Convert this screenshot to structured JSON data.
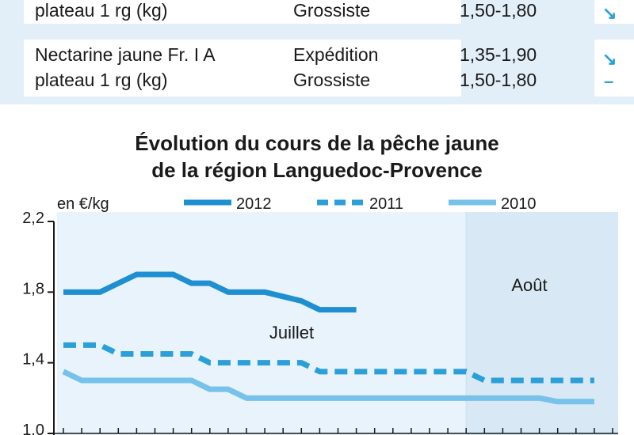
{
  "table": {
    "rows": [
      {
        "product_line2": "plateau 1 rg (kg)",
        "stage2": "Grossiste",
        "price2": "1,50-1,80",
        "trend2": "↘"
      },
      {
        "product_line1": "Nectarine jaune Fr. I A",
        "product_line2": "plateau 1 rg (kg)",
        "stage1": "Expédition",
        "stage2": "Grossiste",
        "price1": "1,35-1,90",
        "price2": "1,50-1,80",
        "trend1": "↘",
        "trend2": "–"
      }
    ]
  },
  "chart_data": {
    "type": "line",
    "title": "Évolution du cours de la pêche jaune",
    "subtitle": "de la région Languedoc-Provence",
    "ylabel": "en €/kg",
    "xlabel": "",
    "ylim": [
      1.0,
      2.2
    ],
    "yticks": [
      "2,2",
      "1,8",
      "1,4",
      "1,0"
    ],
    "yticks_values": [
      2.2,
      1.8,
      1.4,
      1.0
    ],
    "periods": [
      {
        "label": "Juillet",
        "start": 0,
        "end": 22
      },
      {
        "label": "Août",
        "start": 22,
        "end": 30
      }
    ],
    "legend_position": "top",
    "grid": false,
    "series": [
      {
        "name": "2012",
        "style": "solid",
        "color": "#1e8fd0",
        "x": [
          0,
          2,
          4,
          5,
          6,
          7,
          8,
          9,
          10,
          11,
          13,
          14,
          15,
          16
        ],
        "y": [
          1.8,
          1.8,
          1.9,
          1.9,
          1.9,
          1.85,
          1.85,
          1.8,
          1.8,
          1.8,
          1.75,
          1.7,
          1.7,
          1.7
        ]
      },
      {
        "name": "2011",
        "style": "dashed",
        "color": "#2b9fd8",
        "x": [
          0,
          2,
          3,
          4,
          5,
          6,
          7,
          8,
          9,
          10,
          11,
          12,
          13,
          14,
          15,
          16,
          17,
          18,
          19,
          20,
          21,
          22,
          23,
          24,
          25,
          26,
          27,
          28,
          29
        ],
        "y": [
          1.5,
          1.5,
          1.45,
          1.45,
          1.45,
          1.45,
          1.45,
          1.4,
          1.4,
          1.4,
          1.4,
          1.4,
          1.4,
          1.35,
          1.35,
          1.35,
          1.35,
          1.35,
          1.35,
          1.35,
          1.35,
          1.35,
          1.3,
          1.3,
          1.3,
          1.3,
          1.3,
          1.3,
          1.3
        ]
      },
      {
        "name": "2010",
        "style": "solid",
        "color": "#76c2ea",
        "x": [
          0,
          1,
          2,
          3,
          4,
          5,
          6,
          7,
          8,
          9,
          10,
          11,
          12,
          13,
          14,
          15,
          16,
          17,
          18,
          19,
          20,
          21,
          22,
          23,
          24,
          25,
          26,
          27,
          28,
          29
        ],
        "y": [
          1.35,
          1.3,
          1.3,
          1.3,
          1.3,
          1.3,
          1.3,
          1.3,
          1.25,
          1.25,
          1.2,
          1.2,
          1.2,
          1.2,
          1.2,
          1.2,
          1.2,
          1.2,
          1.2,
          1.2,
          1.2,
          1.2,
          1.2,
          1.2,
          1.2,
          1.2,
          1.2,
          1.18,
          1.18,
          1.18
        ]
      }
    ]
  }
}
